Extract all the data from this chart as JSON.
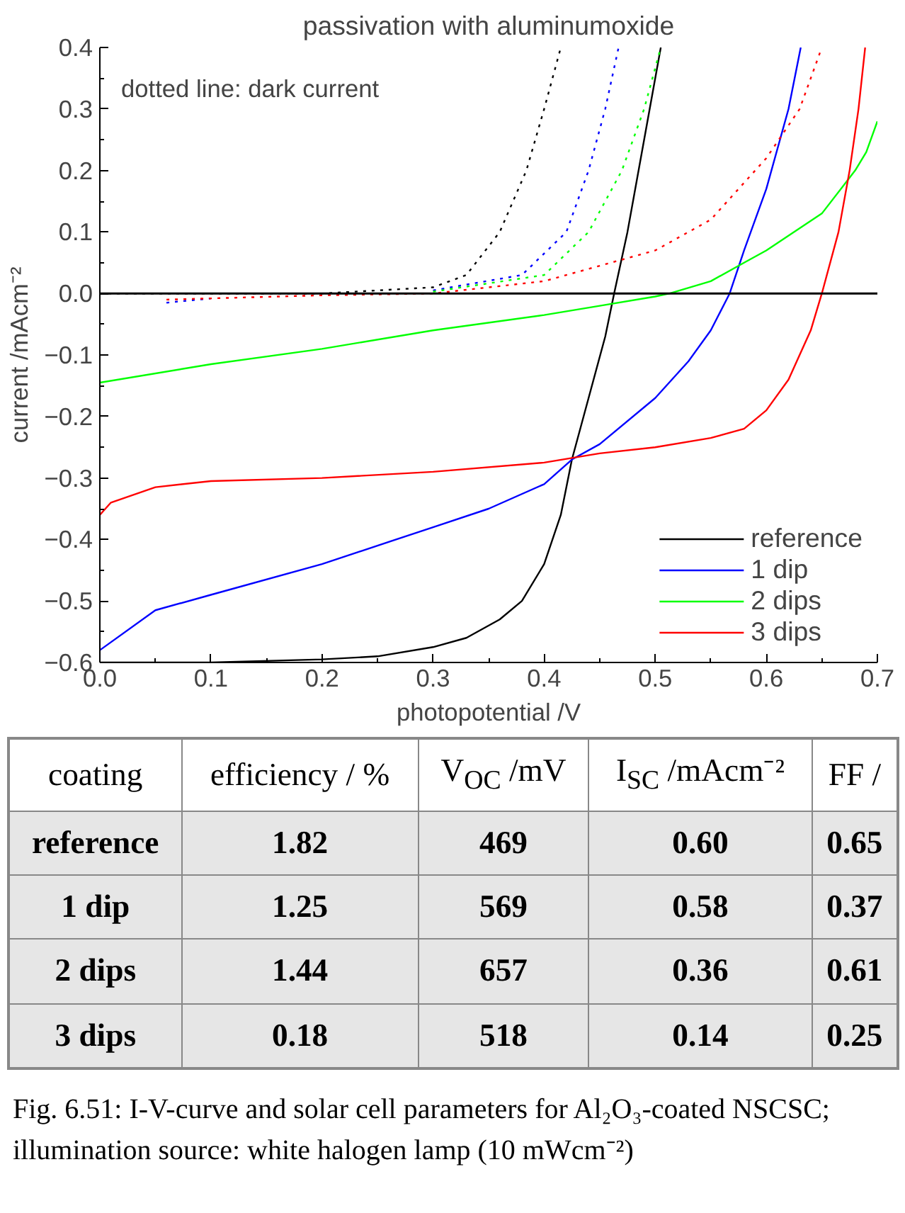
{
  "chart_data": [
    {
      "type": "line",
      "title": "passivation with aluminumoxide",
      "xlabel": "photopotential /V",
      "ylabel": "current /mAcm⁻²",
      "xlim": [
        0,
        0.7
      ],
      "ylim": [
        -0.6,
        0.4
      ],
      "xticks": [
        {
          "value": 0,
          "label": "0.0"
        },
        0.1,
        0.2,
        0.3,
        0.4,
        0.5,
        0.6,
        0.7
      ],
      "yticks": [
        -0.6,
        -0.5,
        -0.4,
        -0.3,
        -0.2,
        -0.1,
        {
          "value": 0,
          "label": "0.0"
        },
        0.1,
        0.2,
        0.3,
        0.4
      ],
      "grid": false,
      "legend": "bottom right",
      "marker": "none",
      "ref_lines": [
        {
          "axis": "y",
          "value": 0,
          "color": "#000000"
        }
      ],
      "annotations": [
        "dotted line: dark current"
      ],
      "series": [
        {
          "name": "reference",
          "color": "#000000",
          "line_style": "solid",
          "x": [
            0,
            0.1,
            0.2,
            0.25,
            0.3,
            0.33,
            0.36,
            0.38,
            0.4,
            0.415,
            0.425,
            0.44,
            0.455,
            0.463,
            0.475,
            0.49,
            0.505
          ],
          "values": [
            -0.6,
            -0.6,
            -0.595,
            -0.59,
            -0.575,
            -0.56,
            -0.53,
            -0.5,
            -0.44,
            -0.36,
            -0.27,
            -0.17,
            -0.07,
            0.0,
            0.1,
            0.25,
            0.4
          ]
        },
        {
          "name": "1 dip",
          "color": "#0000ff",
          "line_style": "solid",
          "x": [
            0,
            0.05,
            0.1,
            0.2,
            0.3,
            0.35,
            0.4,
            0.425,
            0.45,
            0.5,
            0.53,
            0.55,
            0.567,
            0.58,
            0.6,
            0.62,
            0.631
          ],
          "values": [
            -0.58,
            -0.515,
            -0.49,
            -0.44,
            -0.38,
            -0.35,
            -0.31,
            -0.27,
            -0.245,
            -0.17,
            -0.11,
            -0.06,
            0.0,
            0.07,
            0.17,
            0.3,
            0.4
          ]
        },
        {
          "name": "2 dips",
          "color": "#00ff00",
          "line_style": "solid",
          "x": [
            0,
            0.1,
            0.2,
            0.3,
            0.4,
            0.45,
            0.5,
            0.513,
            0.55,
            0.58,
            0.6,
            0.65,
            0.68,
            0.69,
            0.7
          ],
          "values": [
            -0.145,
            -0.115,
            -0.09,
            -0.06,
            -0.035,
            -0.02,
            -0.005,
            0.0,
            0.02,
            0.05,
            0.07,
            0.13,
            0.2,
            0.23,
            0.28
          ]
        },
        {
          "name": "3 dips",
          "color": "#ff0000",
          "line_style": "solid",
          "x": [
            0,
            0.01,
            0.05,
            0.1,
            0.2,
            0.3,
            0.4,
            0.45,
            0.5,
            0.55,
            0.58,
            0.6,
            0.62,
            0.64,
            0.65,
            0.665,
            0.675,
            0.683,
            0.689
          ],
          "values": [
            -0.36,
            -0.34,
            -0.315,
            -0.305,
            -0.3,
            -0.29,
            -0.275,
            -0.26,
            -0.25,
            -0.235,
            -0.22,
            -0.19,
            -0.14,
            -0.06,
            0.0,
            0.1,
            0.2,
            0.3,
            0.4
          ]
        },
        {
          "color": "#000000",
          "line_style": "dotted",
          "x": [
            0,
            0.1,
            0.2,
            0.3,
            0.33,
            0.36,
            0.384,
            0.4,
            0.415
          ],
          "values": [
            0.0,
            0.0,
            0.0,
            0.01,
            0.03,
            0.1,
            0.2,
            0.3,
            0.4
          ]
        },
        {
          "color": "#0000ff",
          "line_style": "dotted",
          "x": [
            0.06,
            0.1,
            0.2,
            0.3,
            0.38,
            0.42,
            0.44,
            0.455,
            0.467
          ],
          "values": [
            -0.015,
            -0.008,
            null,
            0.005,
            0.03,
            0.1,
            0.2,
            0.3,
            0.4
          ]
        },
        {
          "color": "#00ff00",
          "line_style": "dotted",
          "x": [
            0.3,
            0.4,
            0.44,
            0.47,
            0.49,
            0.505
          ],
          "values": [
            0.003,
            0.03,
            0.1,
            0.2,
            0.3,
            0.4
          ]
        },
        {
          "color": "#ff0000",
          "line_style": "dotted",
          "x": [
            0.06,
            0.2,
            0.3,
            0.4,
            0.5,
            0.55,
            0.6,
            0.63,
            0.65
          ],
          "values": [
            -0.01,
            -0.003,
            0.0,
            0.02,
            0.07,
            0.12,
            0.22,
            0.3,
            0.4
          ]
        }
      ]
    },
    {
      "type": "other",
      "categories": [
        "coating",
        "efficiency / %",
        "V$_{OC}$ /mV",
        "I$_{SC}$ /mAcm⁻²",
        "FF /"
      ],
      "y_categories": [
        "reference",
        "1 dip",
        "2 dips",
        "3 dips"
      ],
      "cell_labels": [
        [
          "1.82",
          "469",
          "0.60",
          "0.65"
        ],
        [
          "1.25",
          "569",
          "0.58",
          "0.37"
        ],
        [
          "1.44",
          "657",
          "0.36",
          "0.61"
        ],
        [
          "0.18",
          "518",
          "0.14",
          "0.25"
        ]
      ],
      "annotations": [
        "Fig. 6.51: I-V-curve and solar cell parameters for Al₂O₃-coated NSCSC; illumination source: white halogen lamp (10 mWcm⁻²)"
      ]
    }
  ]
}
